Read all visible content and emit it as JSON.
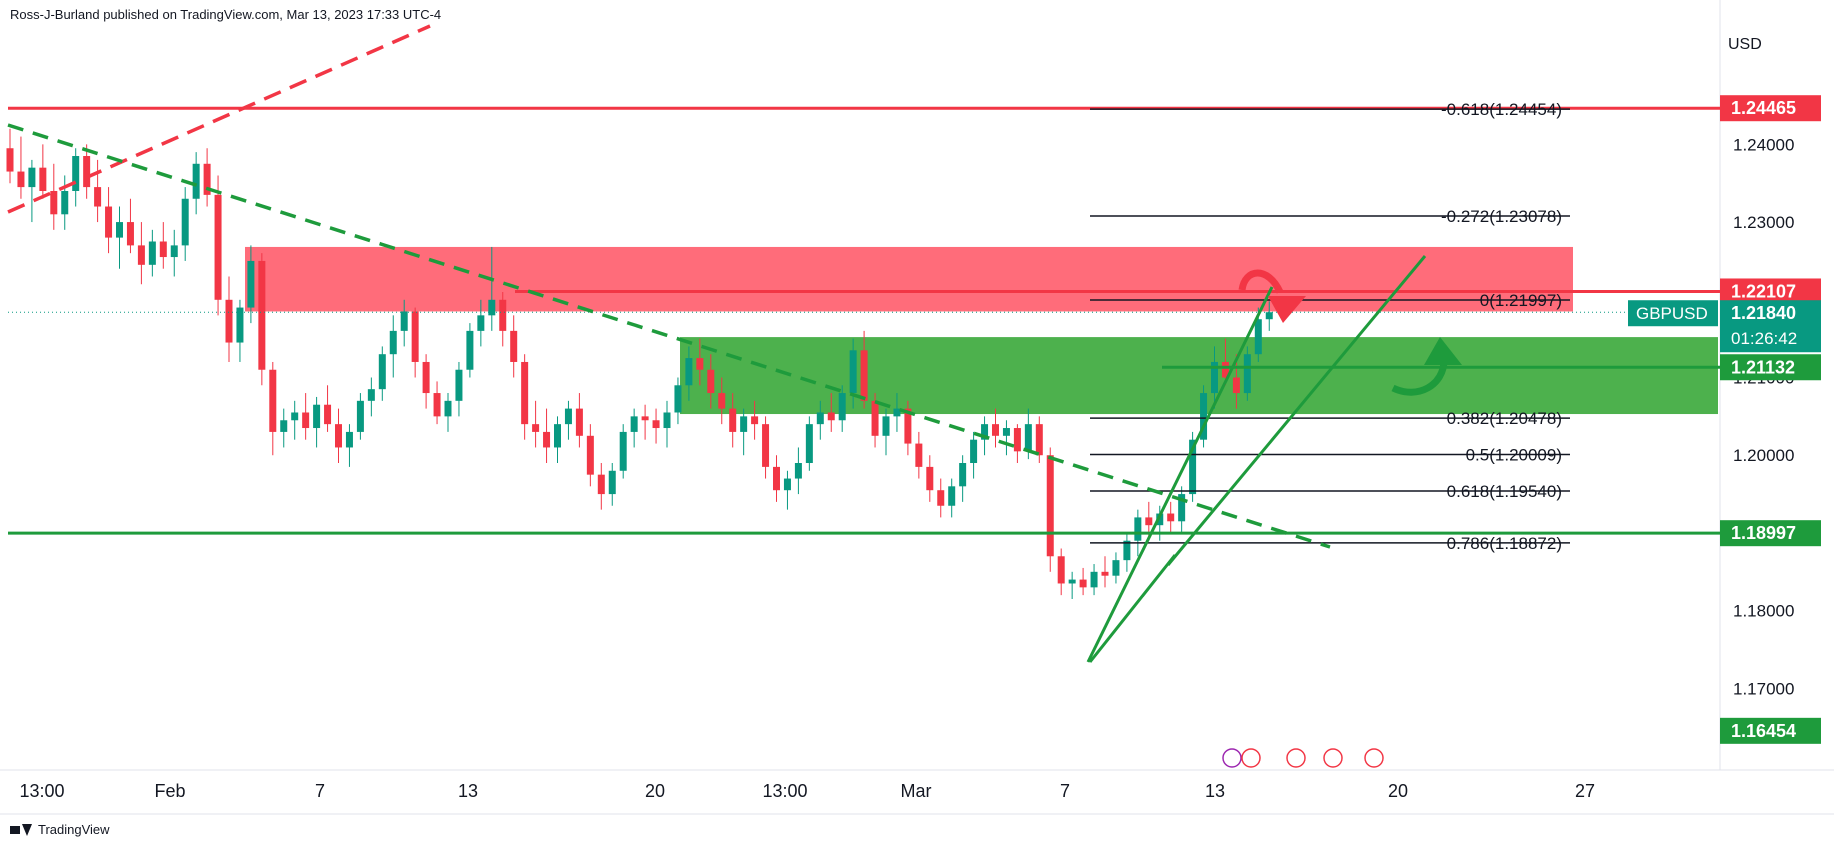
{
  "header": {
    "text": "Ross-J-Burland published on TradingView.com, Mar 13, 2023 17:33 UTC-4"
  },
  "footer": {
    "brand": "TradingView"
  },
  "chart_data": {
    "type": "candlestick",
    "symbol": "GBPUSD",
    "currency": "USD",
    "countdown": "01:26:42",
    "y_range": [
      1.1595,
      1.256
    ],
    "y_ticks": [
      {
        "value": 1.24,
        "label": "1.24000"
      },
      {
        "value": 1.23,
        "label": "1.23000"
      },
      {
        "value": 1.21,
        "label": "1.21000"
      },
      {
        "value": 1.2,
        "label": "1.20000"
      },
      {
        "value": 1.18,
        "label": "1.18000"
      },
      {
        "value": 1.17,
        "label": "1.17000"
      }
    ],
    "x_ticks": [
      "13:00",
      "Feb",
      "7",
      "13",
      "20",
      "13:00",
      "Mar",
      "7",
      "13",
      "20",
      "27"
    ],
    "price_tags": [
      {
        "value": 1.24465,
        "label": "1.24465",
        "color": "#f23645"
      },
      {
        "value": 1.22107,
        "label": "1.22107",
        "color": "#f23645"
      },
      {
        "value": 1.2184,
        "label": "1.21840",
        "color": "#089981",
        "name": "GBPUSD"
      },
      {
        "value": 1.21132,
        "label": "1.21132",
        "color": "#1e9b3c"
      },
      {
        "value": 1.18997,
        "label": "1.18997",
        "color": "#1e9b3c"
      },
      {
        "value": 1.16454,
        "label": "1.16454",
        "color": "#1e9b3c"
      }
    ],
    "fib_levels": [
      {
        "ratio": "-0.618",
        "value": 1.24454,
        "label": "-0.618(1.24454)"
      },
      {
        "ratio": "-0.272",
        "value": 1.23078,
        "label": "-0.272(1.23078)"
      },
      {
        "ratio": "0",
        "value": 1.21997,
        "label": "0(1.21997)"
      },
      {
        "ratio": "0.382",
        "value": 1.20478,
        "label": "0.382(1.20478)"
      },
      {
        "ratio": "0.5",
        "value": 1.20009,
        "label": "0.5(1.20009)"
      },
      {
        "ratio": "0.618",
        "value": 1.1954,
        "label": "0.618(1.19540)"
      },
      {
        "ratio": "0.786",
        "value": 1.18872,
        "label": "0.786(1.18872)"
      }
    ],
    "zones": [
      {
        "kind": "resistance",
        "top": 1.2268,
        "bottom": 1.2185,
        "color": "#ff5c6c"
      },
      {
        "kind": "support",
        "top": 1.2152,
        "bottom": 1.2053,
        "color": "#3aa83a"
      }
    ],
    "horizontal_lines": [
      {
        "value": 1.24465,
        "color": "#f23645"
      },
      {
        "value": 1.22107,
        "color": "#f23645"
      },
      {
        "value": 1.21132,
        "color": "#1e9b3c"
      },
      {
        "value": 1.18997,
        "color": "#1e9b3c"
      }
    ],
    "candles": [
      [
        1.2395,
        1.242,
        1.235,
        1.2365
      ],
      [
        1.2365,
        1.241,
        1.233,
        1.2345
      ],
      [
        1.2345,
        1.238,
        1.23,
        1.237
      ],
      [
        1.237,
        1.24,
        1.233,
        1.234
      ],
      [
        1.234,
        1.2375,
        1.229,
        1.231
      ],
      [
        1.231,
        1.236,
        1.229,
        1.234
      ],
      [
        1.234,
        1.2395,
        1.232,
        1.2385
      ],
      [
        1.2385,
        1.24,
        1.233,
        1.2345
      ],
      [
        1.2345,
        1.238,
        1.23,
        1.232
      ],
      [
        1.232,
        1.2345,
        1.226,
        1.228
      ],
      [
        1.228,
        1.232,
        1.224,
        1.23
      ],
      [
        1.23,
        1.233,
        1.226,
        1.227
      ],
      [
        1.227,
        1.23,
        1.222,
        1.2245
      ],
      [
        1.2245,
        1.229,
        1.223,
        1.2275
      ],
      [
        1.2275,
        1.23,
        1.224,
        1.2255
      ],
      [
        1.2255,
        1.229,
        1.223,
        1.227
      ],
      [
        1.227,
        1.2345,
        1.225,
        1.233
      ],
      [
        1.233,
        1.239,
        1.231,
        1.2375
      ],
      [
        1.2375,
        1.2395,
        1.232,
        1.2335
      ],
      [
        1.2335,
        1.236,
        1.218,
        1.22
      ],
      [
        1.22,
        1.223,
        1.212,
        1.2145
      ],
      [
        1.2145,
        1.22,
        1.212,
        1.219
      ],
      [
        1.219,
        1.227,
        1.217,
        1.225
      ],
      [
        1.225,
        1.226,
        1.209,
        1.211
      ],
      [
        1.211,
        1.212,
        1.2,
        1.203
      ],
      [
        1.203,
        1.206,
        1.201,
        1.2045
      ],
      [
        1.2045,
        1.207,
        1.202,
        1.2055
      ],
      [
        1.2055,
        1.208,
        1.202,
        1.2035
      ],
      [
        1.2035,
        1.2075,
        1.201,
        1.2065
      ],
      [
        1.2065,
        1.209,
        1.203,
        1.204
      ],
      [
        1.204,
        1.206,
        1.199,
        1.201
      ],
      [
        1.201,
        1.204,
        1.1985,
        1.203
      ],
      [
        1.203,
        1.208,
        1.202,
        1.207
      ],
      [
        1.207,
        1.21,
        1.205,
        1.2085
      ],
      [
        1.2085,
        1.214,
        1.207,
        1.213
      ],
      [
        1.213,
        1.218,
        1.21,
        1.216
      ],
      [
        1.216,
        1.22,
        1.214,
        1.2185
      ],
      [
        1.2185,
        1.219,
        1.21,
        1.212
      ],
      [
        1.212,
        1.213,
        1.206,
        1.208
      ],
      [
        1.208,
        1.2095,
        1.204,
        1.205
      ],
      [
        1.205,
        1.208,
        1.203,
        1.207
      ],
      [
        1.207,
        1.212,
        1.205,
        1.211
      ],
      [
        1.211,
        1.217,
        1.21,
        1.216
      ],
      [
        1.216,
        1.22,
        1.214,
        1.218
      ],
      [
        1.218,
        1.2268,
        1.216,
        1.22
      ],
      [
        1.22,
        1.221,
        1.214,
        1.216
      ],
      [
        1.216,
        1.218,
        1.21,
        1.212
      ],
      [
        1.212,
        1.213,
        1.202,
        1.204
      ],
      [
        1.204,
        1.207,
        1.201,
        1.203
      ],
      [
        1.203,
        1.206,
        1.199,
        1.201
      ],
      [
        1.201,
        1.205,
        1.199,
        1.204
      ],
      [
        1.204,
        1.207,
        1.202,
        1.206
      ],
      [
        1.206,
        1.208,
        1.201,
        1.2025
      ],
      [
        1.2025,
        1.204,
        1.196,
        1.1975
      ],
      [
        1.1975,
        1.199,
        1.193,
        1.195
      ],
      [
        1.195,
        1.199,
        1.1935,
        1.198
      ],
      [
        1.198,
        1.204,
        1.197,
        1.203
      ],
      [
        1.203,
        1.206,
        1.201,
        1.205
      ],
      [
        1.205,
        1.2065,
        1.202,
        1.2045
      ],
      [
        1.2045,
        1.206,
        1.2015,
        1.2035
      ],
      [
        1.2035,
        1.207,
        1.201,
        1.2055
      ],
      [
        1.2055,
        1.21,
        1.204,
        1.209
      ],
      [
        1.209,
        1.214,
        1.207,
        1.2125
      ],
      [
        1.2125,
        1.215,
        1.209,
        1.211
      ],
      [
        1.211,
        1.213,
        1.206,
        1.208
      ],
      [
        1.208,
        1.21,
        1.204,
        1.206
      ],
      [
        1.206,
        1.208,
        1.201,
        1.203
      ],
      [
        1.203,
        1.206,
        1.2,
        1.205
      ],
      [
        1.205,
        1.207,
        1.202,
        1.204
      ],
      [
        1.204,
        1.205,
        1.197,
        1.1985
      ],
      [
        1.1985,
        1.2,
        1.194,
        1.1955
      ],
      [
        1.1955,
        1.198,
        1.193,
        1.197
      ],
      [
        1.197,
        1.201,
        1.195,
        1.199
      ],
      [
        1.199,
        1.205,
        1.198,
        1.204
      ],
      [
        1.204,
        1.207,
        1.202,
        1.2055
      ],
      [
        1.2055,
        1.208,
        1.203,
        1.2045
      ],
      [
        1.2045,
        1.209,
        1.203,
        1.208
      ],
      [
        1.208,
        1.215,
        1.206,
        1.2135
      ],
      [
        1.2135,
        1.216,
        1.206,
        1.207
      ],
      [
        1.207,
        1.208,
        1.201,
        1.2025
      ],
      [
        1.2025,
        1.206,
        1.2,
        1.205
      ],
      [
        1.205,
        1.208,
        1.203,
        1.206
      ],
      [
        1.206,
        1.207,
        1.2,
        1.2015
      ],
      [
        1.2015,
        1.203,
        1.197,
        1.1985
      ],
      [
        1.1985,
        1.2,
        1.194,
        1.1955
      ],
      [
        1.1955,
        1.197,
        1.192,
        1.1935
      ],
      [
        1.1935,
        1.197,
        1.192,
        1.196
      ],
      [
        1.196,
        1.2,
        1.194,
        1.199
      ],
      [
        1.199,
        1.203,
        1.197,
        1.202
      ],
      [
        1.202,
        1.205,
        1.2,
        1.204
      ],
      [
        1.204,
        1.206,
        1.201,
        1.2025
      ],
      [
        1.2025,
        1.2045,
        1.2,
        1.2035
      ],
      [
        1.2035,
        1.204,
        1.199,
        1.2005
      ],
      [
        1.2005,
        1.206,
        1.1995,
        1.204
      ],
      [
        1.204,
        1.205,
        1.199,
        1.2
      ],
      [
        1.2,
        1.201,
        1.185,
        1.187
      ],
      [
        1.187,
        1.188,
        1.182,
        1.1835
      ],
      [
        1.1835,
        1.185,
        1.1815,
        1.184
      ],
      [
        1.184,
        1.1855,
        1.182,
        1.183
      ],
      [
        1.183,
        1.186,
        1.182,
        1.185
      ],
      [
        1.185,
        1.187,
        1.183,
        1.1845
      ],
      [
        1.1845,
        1.1875,
        1.1835,
        1.1865
      ],
      [
        1.1865,
        1.19,
        1.185,
        1.189
      ],
      [
        1.189,
        1.193,
        1.187,
        1.192
      ],
      [
        1.192,
        1.194,
        1.1895,
        1.191
      ],
      [
        1.191,
        1.1935,
        1.189,
        1.1925
      ],
      [
        1.1925,
        1.194,
        1.19,
        1.1915
      ],
      [
        1.1915,
        1.196,
        1.19,
        1.195
      ],
      [
        1.195,
        1.203,
        1.194,
        1.202
      ],
      [
        1.202,
        1.209,
        1.201,
        1.208
      ],
      [
        1.208,
        1.214,
        1.206,
        1.212
      ],
      [
        1.212,
        1.215,
        1.209,
        1.21
      ],
      [
        1.21,
        1.213,
        1.206,
        1.208
      ],
      [
        1.208,
        1.214,
        1.207,
        1.213
      ],
      [
        1.213,
        1.219,
        1.212,
        1.2175
      ],
      [
        1.2175,
        1.2198,
        1.216,
        1.2184
      ]
    ]
  }
}
